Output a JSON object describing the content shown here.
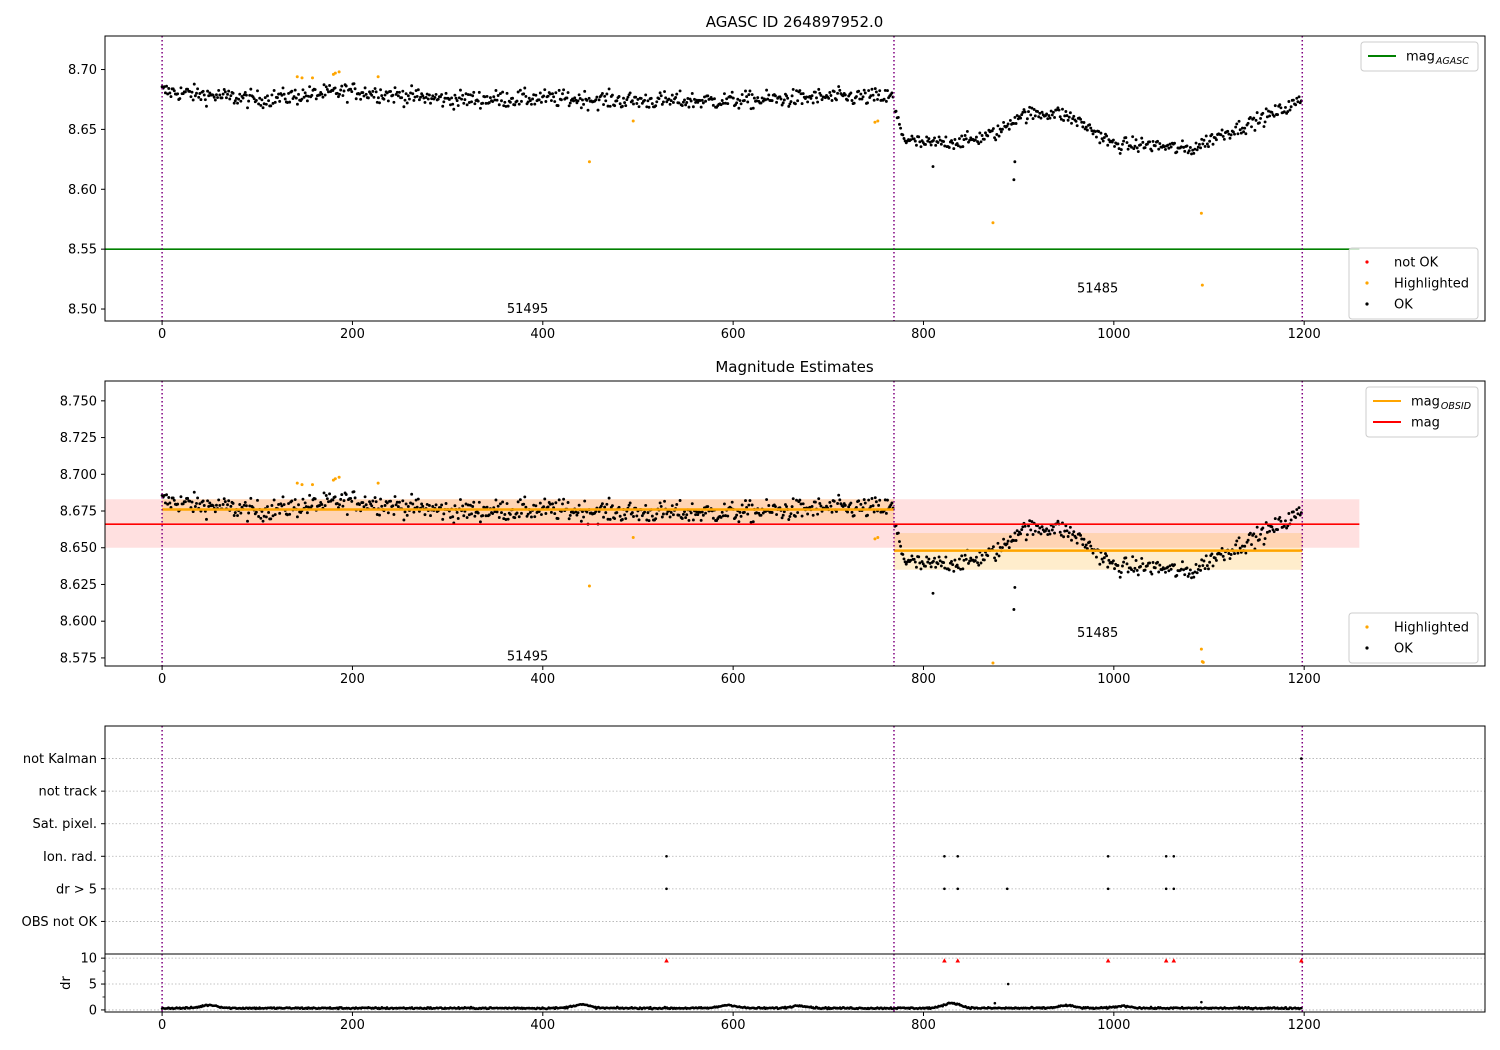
{
  "chart_data": [
    {
      "type": "scatter",
      "title": "AGASC ID 264897952.0",
      "xlabel": "",
      "ylabel": "",
      "xlim": [
        -60,
        1390
      ],
      "ylim": [
        8.49,
        8.728
      ],
      "x_ticks": [
        0,
        200,
        400,
        600,
        800,
        1000,
        1200
      ],
      "x_tick_labels": [
        "0",
        "200",
        "400",
        "600",
        "800",
        "1000",
        "1200"
      ],
      "y_ticks": [
        8.5,
        8.55,
        8.6,
        8.65,
        8.7
      ],
      "y_tick_labels": [
        "8.50",
        "8.55",
        "8.60",
        "8.65",
        "8.70"
      ],
      "grid": false,
      "obsid_boundaries": [
        0,
        769,
        1198
      ],
      "obsid_labels": [
        {
          "text": "51495",
          "x": 384,
          "y": 8.5
        },
        {
          "text": "51485",
          "x": 983,
          "y": 8.517
        }
      ],
      "horizontal_lines": [
        {
          "name": "mag_AGASC",
          "value": 8.55,
          "x_range": [
            -60,
            1258
          ],
          "color": "#008000"
        }
      ],
      "legends": [
        {
          "placement": "top-right",
          "entries": [
            {
              "label": "mag",
              "sub": "AGASC",
              "kind": "line",
              "color": "#008000"
            }
          ]
        },
        {
          "placement": "lower-right",
          "entries": [
            {
              "label": "not OK",
              "kind": "marker",
              "color": "#ff0000"
            },
            {
              "label": "Highlighted",
              "kind": "marker",
              "color": "#ffa500"
            },
            {
              "label": "OK",
              "kind": "marker",
              "color": "#000000"
            }
          ]
        }
      ],
      "series": [
        {
          "name": "OK",
          "color": "#000000",
          "segments": [
            {
              "x_start": 0,
              "x_end": 768,
              "n": 660,
              "keys": [
                [
                  0,
                  8.682
                ],
                [
                  100,
                  8.675
                ],
                [
                  200,
                  8.682
                ],
                [
                  300,
                  8.675
                ],
                [
                  400,
                  8.676
                ],
                [
                  500,
                  8.674
                ],
                [
                  600,
                  8.674
                ],
                [
                  700,
                  8.677
                ],
                [
                  768,
                  8.677
                ]
              ],
              "spread": 0.0065
            },
            {
              "x_start": 770,
              "x_end": 1197,
              "n": 360,
              "keys": [
                [
                  770,
                  8.665
                ],
                [
                  780,
                  8.642
                ],
                [
                  800,
                  8.638
                ],
                [
                  850,
                  8.641
                ],
                [
                  880,
                  8.648
                ],
                [
                  900,
                  8.662
                ],
                [
                  940,
                  8.664
                ],
                [
                  960,
                  8.658
                ],
                [
                  980,
                  8.648
                ],
                [
                  1000,
                  8.637
                ],
                [
                  1040,
                  8.637
                ],
                [
                  1080,
                  8.633
                ],
                [
                  1110,
                  8.645
                ],
                [
                  1140,
                  8.654
                ],
                [
                  1170,
                  8.664
                ],
                [
                  1197,
                  8.674
                ]
              ],
              "spread": 0.0055
            }
          ],
          "outliers": [
            [
              895,
              8.608
            ],
            [
              896,
              8.623
            ],
            [
              810,
              8.619
            ]
          ]
        },
        {
          "name": "Highlighted",
          "color": "#ffa500",
          "points": [
            [
              142,
              8.694
            ],
            [
              147,
              8.693
            ],
            [
              158,
              8.693
            ],
            [
              180,
              8.696
            ],
            [
              182,
              8.697
            ],
            [
              186,
              8.698
            ],
            [
              227,
              8.694
            ],
            [
              449,
              8.623
            ],
            [
              495,
              8.657
            ],
            [
              749,
              8.656
            ],
            [
              752,
              8.657
            ],
            [
              873,
              8.572
            ],
            [
              1092,
              8.58
            ],
            [
              1093,
              8.52
            ]
          ]
        }
      ]
    },
    {
      "type": "scatter",
      "title": "Magnitude Estimates",
      "xlabel": "",
      "ylabel": "",
      "xlim": [
        -60,
        1390
      ],
      "ylim": [
        8.5695,
        8.7635
      ],
      "x_ticks": [
        0,
        200,
        400,
        600,
        800,
        1000,
        1200
      ],
      "x_tick_labels": [
        "0",
        "200",
        "400",
        "600",
        "800",
        "1000",
        "1200"
      ],
      "y_ticks": [
        8.575,
        8.6,
        8.625,
        8.65,
        8.675,
        8.7,
        8.725,
        8.75
      ],
      "y_tick_labels": [
        "8.575",
        "8.600",
        "8.625",
        "8.650",
        "8.675",
        "8.700",
        "8.725",
        "8.750"
      ],
      "grid": false,
      "obsid_boundaries": [
        0,
        769,
        1198
      ],
      "obsid_labels": [
        {
          "text": "51495",
          "x": 384,
          "y": 8.576
        },
        {
          "text": "51485",
          "x": 983,
          "y": 8.592
        }
      ],
      "bands": [
        {
          "x_range": [
            -60,
            1258
          ],
          "y_range": [
            8.65,
            8.683
          ],
          "color": "#ff0000",
          "opacity": 0.12
        },
        {
          "x_range": [
            0,
            769
          ],
          "y_range": [
            8.667,
            8.683
          ],
          "color": "#ffa500",
          "opacity": 0.2
        },
        {
          "x_range": [
            769,
            1198
          ],
          "y_range": [
            8.635,
            8.66
          ],
          "color": "#ffa500",
          "opacity": 0.2
        }
      ],
      "mag_obsid": [
        {
          "x_range": [
            0,
            769
          ],
          "value": 8.676
        },
        {
          "x_range": [
            769,
            1198
          ],
          "value": 8.648
        }
      ],
      "mag": {
        "x_range": [
          -60,
          1258
        ],
        "value": 8.666
      },
      "legends": [
        {
          "placement": "top-right",
          "entries": [
            {
              "label": "mag",
              "sub": "OBSID",
              "kind": "line",
              "color": "#ffa500"
            },
            {
              "label": "mag",
              "kind": "line",
              "color": "#ff0000"
            }
          ]
        },
        {
          "placement": "lower-right",
          "entries": [
            {
              "label": "Highlighted",
              "kind": "marker",
              "color": "#ffa500"
            },
            {
              "label": "OK",
              "kind": "marker",
              "color": "#000000"
            }
          ]
        }
      ],
      "series": [
        {
          "name": "OK",
          "color": "#000000",
          "same_as_panel": 0
        },
        {
          "name": "Highlighted",
          "color": "#ffa500",
          "points": [
            [
              142,
              8.694
            ],
            [
              147,
              8.693
            ],
            [
              158,
              8.693
            ],
            [
              180,
              8.696
            ],
            [
              182,
              8.697
            ],
            [
              186,
              8.698
            ],
            [
              227,
              8.694
            ],
            [
              449,
              8.624
            ],
            [
              495,
              8.657
            ],
            [
              749,
              8.656
            ],
            [
              752,
              8.657
            ],
            [
              873,
              8.5715
            ],
            [
              1092,
              8.581
            ],
            [
              1093,
              8.5725
            ],
            [
              1094,
              8.572
            ]
          ]
        }
      ]
    },
    {
      "type": "scatter",
      "title": "",
      "xlabel": "",
      "ylabel": "",
      "xlim": [
        -60,
        1390
      ],
      "ylim": [
        0,
        7
      ],
      "y_ticks": [
        1,
        2,
        3,
        4,
        5,
        6
      ],
      "y_tick_labels": [
        "OBS not OK",
        "dr > 5",
        "Ion. rad.",
        "Sat. pixel.",
        "not track",
        "not Kalman"
      ],
      "grid": true,
      "obsid_boundaries": [
        0,
        769,
        1198
      ],
      "flags": [
        {
          "name": "not Kalman",
          "level": 6,
          "x": [
            1197
          ]
        },
        {
          "name": "Ion. rad.",
          "level": 3,
          "x": [
            530,
            822,
            836,
            994,
            1055,
            1063
          ]
        },
        {
          "name": "dr > 5",
          "level": 2,
          "x": [
            530,
            822,
            836,
            888,
            994,
            1055,
            1063
          ]
        }
      ]
    },
    {
      "type": "scatter",
      "title": "",
      "xlabel": "",
      "ylabel": "dr",
      "xlim": [
        -60,
        1390
      ],
      "ylim": [
        -0.4,
        10.8
      ],
      "x_ticks": [
        0,
        200,
        400,
        600,
        800,
        1000,
        1200
      ],
      "x_tick_labels": [
        "0",
        "200",
        "400",
        "600",
        "800",
        "1000",
        "1200"
      ],
      "y_ticks": [
        0,
        5,
        10
      ],
      "y_tick_labels": [
        "0",
        "5",
        "10"
      ],
      "grid": true,
      "obsid_boundaries": [
        0,
        769,
        1198
      ],
      "series": [
        {
          "name": "dr",
          "color": "#000000",
          "x_start": 0,
          "x_end": 1197,
          "n": 1100,
          "base": 0.35,
          "spread": 0.2,
          "bumps": [
            [
              50,
              0.6
            ],
            [
              440,
              0.7
            ],
            [
              595,
              0.6
            ],
            [
              670,
              0.5
            ],
            [
              830,
              1.0
            ],
            [
              950,
              0.5
            ],
            [
              1010,
              0.4
            ]
          ],
          "outliers": [
            [
              875,
              1.3
            ],
            [
              889,
              5.0
            ],
            [
              1092,
              1.5
            ]
          ]
        },
        {
          "name": "dr > 10",
          "color": "#ff0000",
          "marker": "triangle-up",
          "value": 9.5,
          "x": [
            530,
            822,
            836,
            994,
            1055,
            1063,
            1197
          ]
        }
      ]
    }
  ]
}
